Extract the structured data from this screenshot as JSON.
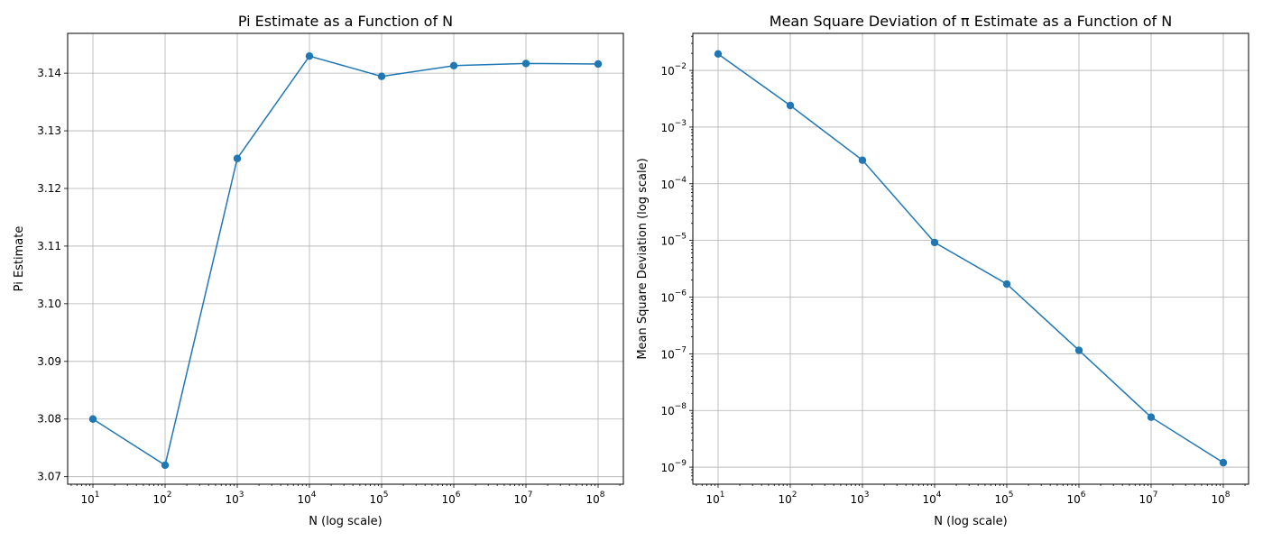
{
  "chart_data": [
    {
      "type": "line",
      "title": "Pi Estimate as a Function of N",
      "xlabel": "N (log scale)",
      "ylabel": "Pi Estimate",
      "xscale": "log",
      "yscale": "linear",
      "grid": true,
      "x": [
        10,
        100,
        1000,
        10000,
        100000,
        1000000,
        10000000,
        100000000
      ],
      "x_tick_labels": [
        {
          "base": "10",
          "exp": "1"
        },
        {
          "base": "10",
          "exp": "2"
        },
        {
          "base": "10",
          "exp": "3"
        },
        {
          "base": "10",
          "exp": "4"
        },
        {
          "base": "10",
          "exp": "5"
        },
        {
          "base": "10",
          "exp": "6"
        },
        {
          "base": "10",
          "exp": "7"
        },
        {
          "base": "10",
          "exp": "8"
        }
      ],
      "y_tick_labels": [
        "3.07",
        "3.08",
        "3.09",
        "3.10",
        "3.11",
        "3.12",
        "3.13",
        "3.14"
      ],
      "y_ticks": [
        3.07,
        3.08,
        3.09,
        3.1,
        3.11,
        3.12,
        3.13,
        3.14
      ],
      "ylim": [
        3.0687,
        3.1469
      ],
      "xlim_exp": [
        0.65,
        8.35
      ],
      "series": [
        {
          "values": [
            3.08,
            3.072,
            3.1252,
            3.14296,
            3.13944,
            3.141296,
            3.1416768,
            3.14158496
          ],
          "color": "#1f77b4"
        }
      ]
    },
    {
      "type": "line",
      "title": "Mean Square Deviation of π Estimate as a Function of N",
      "xlabel": "N (log scale)",
      "ylabel": "Mean Square Deviation (log scale)",
      "xscale": "log",
      "yscale": "log",
      "grid": true,
      "x": [
        10,
        100,
        1000,
        10000,
        100000,
        1000000,
        10000000,
        100000000
      ],
      "x_tick_labels": [
        {
          "base": "10",
          "exp": "1"
        },
        {
          "base": "10",
          "exp": "2"
        },
        {
          "base": "10",
          "exp": "3"
        },
        {
          "base": "10",
          "exp": "4"
        },
        {
          "base": "10",
          "exp": "5"
        },
        {
          "base": "10",
          "exp": "6"
        },
        {
          "base": "10",
          "exp": "7"
        },
        {
          "base": "10",
          "exp": "8"
        }
      ],
      "y_tick_labels": [
        {
          "base": "10",
          "exp": "−9"
        },
        {
          "base": "10",
          "exp": "−8"
        },
        {
          "base": "10",
          "exp": "−7"
        },
        {
          "base": "10",
          "exp": "−6"
        },
        {
          "base": "10",
          "exp": "−5"
        },
        {
          "base": "10",
          "exp": "−4"
        },
        {
          "base": "10",
          "exp": "−3"
        },
        {
          "base": "10",
          "exp": "−2"
        }
      ],
      "y_ticks": [
        1e-09,
        1e-08,
        1e-07,
        1e-06,
        1e-05,
        0.0001,
        0.001,
        0.01
      ],
      "ylim": [
        5e-10,
        0.045
      ],
      "xlim_exp": [
        0.65,
        8.35
      ],
      "series": [
        {
          "values": [
            0.0195,
            0.0024,
            0.00026,
            9.2e-06,
            1.7e-06,
            1.15e-07,
            7.6e-09,
            1.2e-09
          ],
          "color": "#1f77b4"
        }
      ]
    }
  ]
}
